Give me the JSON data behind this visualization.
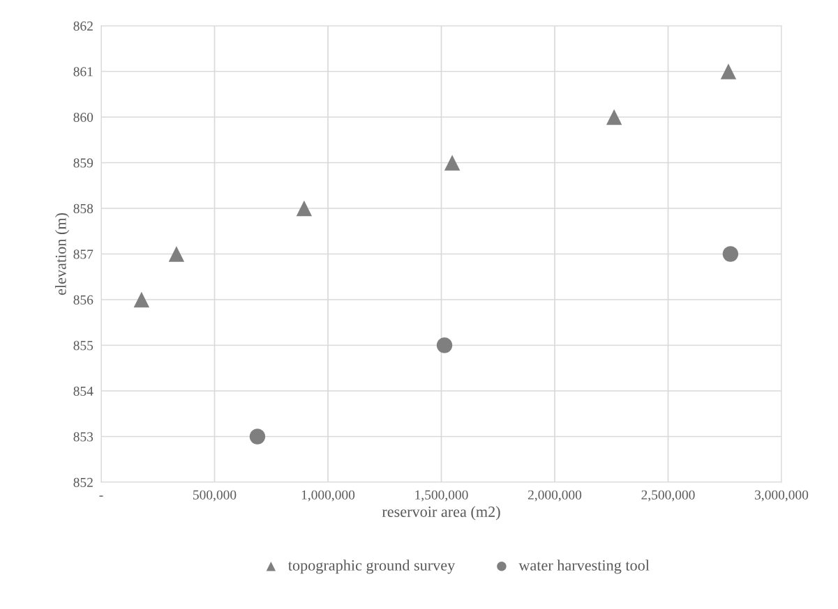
{
  "chart_data": {
    "type": "scatter",
    "xlabel": "reservoir area (m2)",
    "ylabel": "elevation (m)",
    "series": [
      {
        "name": "topographic ground survey",
        "color": "#7f7f7f",
        "marker": "triangle",
        "x": [
          178000,
          332000,
          895000,
          1548000,
          2262000,
          2766000
        ],
        "values": [
          856,
          857,
          858,
          859,
          860,
          861
        ]
      },
      {
        "name": "water harvesting tool",
        "color": "#7f7f7f",
        "marker": "circle",
        "x": [
          689000,
          1514000,
          2775000
        ],
        "values": [
          853,
          855,
          857
        ]
      }
    ],
    "xlim": [
      0,
      3000000
    ],
    "xticks": [
      {
        "value": 0,
        "label": "-"
      },
      {
        "value": 500000,
        "label": "500,000"
      },
      {
        "value": 1000000,
        "label": "1,000,000"
      },
      {
        "value": 1500000,
        "label": "1,500,000"
      },
      {
        "value": 2000000,
        "label": "2,000,000"
      },
      {
        "value": 2500000,
        "label": "2,500,000"
      },
      {
        "value": 3000000,
        "label": "3,000,000"
      }
    ],
    "ylim": [
      852,
      862
    ],
    "yticks": [
      852,
      853,
      854,
      855,
      856,
      857,
      858,
      859,
      860,
      861,
      862
    ],
    "grid": true,
    "legend": "bottom"
  }
}
